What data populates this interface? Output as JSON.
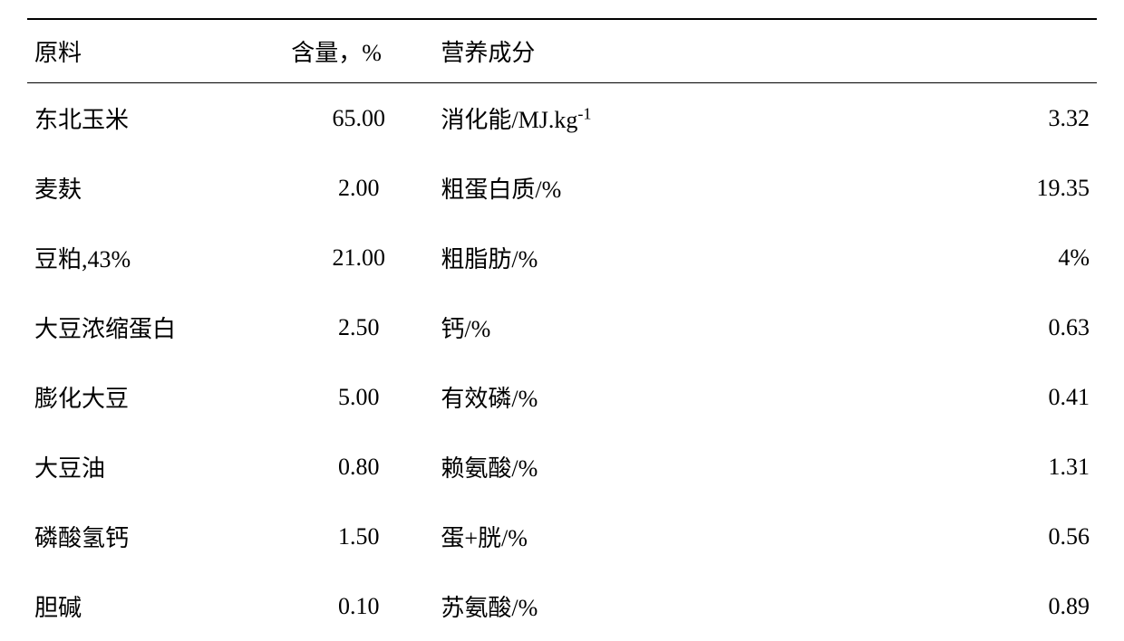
{
  "table": {
    "header": {
      "col1": "原料",
      "col2": "含量，%",
      "col3": "营养成分",
      "col4": ""
    },
    "rows": [
      {
        "ingredient": "东北玉米",
        "content": "65.00",
        "nutrient_html": "消化能/MJ.kg<sup>-1</sup>",
        "value": "3.32"
      },
      {
        "ingredient": "麦麸",
        "content": "2.00",
        "nutrient": "粗蛋白质/%",
        "value": "19.35"
      },
      {
        "ingredient": "豆粕,43%",
        "content": "21.00",
        "nutrient": "粗脂肪/%",
        "value": "4%"
      },
      {
        "ingredient": "大豆浓缩蛋白",
        "content": "2.50",
        "nutrient": "钙/%",
        "value": "0.63"
      },
      {
        "ingredient": "膨化大豆",
        "content": "5.00",
        "nutrient": "有效磷/%",
        "value": "0.41"
      },
      {
        "ingredient": "大豆油",
        "content": "0.80",
        "nutrient": "赖氨酸/%",
        "value": "1.31"
      },
      {
        "ingredient": "磷酸氢钙",
        "content": "1.50",
        "nutrient": "蛋+胱/%",
        "value": "0.56"
      },
      {
        "ingredient": "胆碱",
        "content": "0.10",
        "nutrient": "苏氨酸/%",
        "value": "0.89"
      }
    ],
    "styling": {
      "font_family": "SimSun",
      "font_size": 26,
      "text_color": "#000000",
      "background_color": "#ffffff",
      "border_top_width": 2,
      "header_border_bottom_width": 1.5,
      "border_color": "#000000",
      "row_padding_vertical": 20,
      "col_widths_pct": [
        24,
        14,
        38,
        24
      ],
      "col_aligns": [
        "left",
        "center",
        "left",
        "right"
      ]
    }
  }
}
